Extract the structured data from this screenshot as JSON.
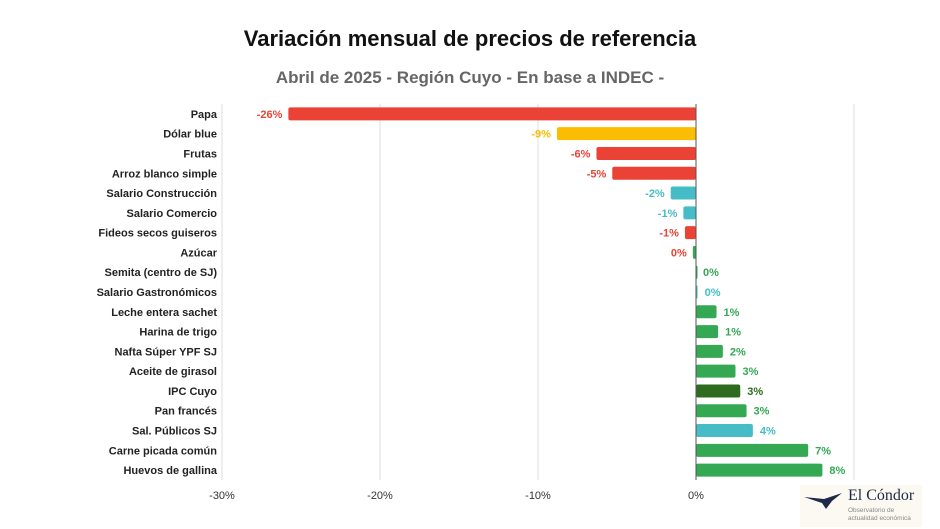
{
  "chart_data": {
    "type": "bar",
    "orientation": "horizontal",
    "title": "Variación mensual de precios de referencia",
    "subtitle": "Abril de 2025 - Región Cuyo - En base a INDEC -",
    "xlim": [
      -30,
      10
    ],
    "xticks": [
      -30,
      -20,
      -10,
      0
    ],
    "xtick_labels": [
      "-30%",
      "-20%",
      "-10%",
      "0%"
    ],
    "grid": true,
    "categories": [
      "Papa",
      "Dólar blue",
      "Frutas",
      "Arroz blanco simple",
      "Salario Construcción",
      "Salario Comercio",
      "Fideos secos guiseros",
      "Azúcar",
      "Semita (centro de SJ)",
      "Salario Gastronómicos",
      "Leche entera sachet",
      "Harina de trigo",
      "Nafta Súper YPF SJ",
      "Aceite de girasol",
      "IPC Cuyo",
      "Pan francés",
      "Sal. Públicos SJ",
      "Carne picada común",
      "Huevos de gallina"
    ],
    "values": [
      -25.8,
      -8.8,
      -6.3,
      -5.3,
      -1.6,
      -0.8,
      -0.7,
      -0.2,
      0.0,
      0.1,
      1.3,
      1.4,
      1.7,
      2.5,
      2.8,
      3.2,
      3.6,
      7.1,
      8.0
    ],
    "data_labels": [
      "-26%",
      "-9%",
      "-6%",
      "-5%",
      "-2%",
      "-1%",
      "-1%",
      "0%",
      "0%",
      "0%",
      "1%",
      "1%",
      "2%",
      "3%",
      "3%",
      "3%",
      "4%",
      "7%",
      "8%"
    ],
    "bar_colors": [
      "#ea4335",
      "#fbbc04",
      "#ea4335",
      "#ea4335",
      "#46bdc6",
      "#46bdc6",
      "#ea4335",
      "#34a853",
      "#34a853",
      "#46bdc6",
      "#34a853",
      "#34a853",
      "#34a853",
      "#34a853",
      "#2e6b1e",
      "#34a853",
      "#46bdc6",
      "#34a853",
      "#34a853"
    ],
    "label_colors": [
      "#ea4335",
      "#fbbc04",
      "#ea4335",
      "#ea4335",
      "#46bdc6",
      "#46bdc6",
      "#ea4335",
      "#ea4335",
      "#34a853",
      "#46bdc6",
      "#34a853",
      "#34a853",
      "#34a853",
      "#34a853",
      "#2e6b1e",
      "#34a853",
      "#46bdc6",
      "#34a853",
      "#34a853"
    ]
  },
  "logo": {
    "name": "El Cóndor",
    "tagline": "Observatorio de actualidad económica"
  }
}
